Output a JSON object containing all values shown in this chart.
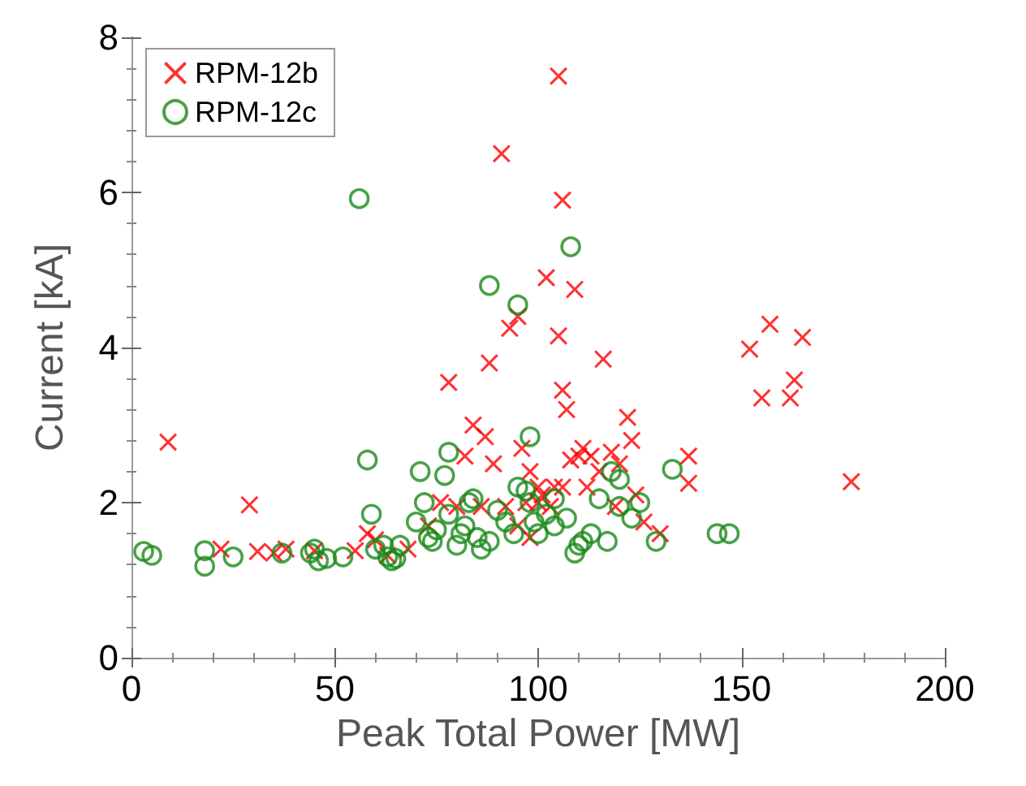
{
  "chart_data": {
    "type": "scatter",
    "xlabel": "Peak Total Power [MW]",
    "ylabel": "Current [kA]",
    "xlim": [
      0,
      200
    ],
    "xticks": [
      0,
      50,
      100,
      150,
      200
    ],
    "ylim": [
      0,
      8
    ],
    "yticks": [
      0,
      2,
      4,
      6,
      8
    ],
    "grid": false,
    "legend": "top left",
    "series": [
      {
        "name": "RPM-12b",
        "color": "#ff0000",
        "marker": "cross",
        "x": [
          9,
          22,
          29,
          31,
          35,
          38,
          45,
          55,
          58,
          60,
          63,
          68,
          73,
          76,
          78,
          80,
          82,
          84,
          86,
          87,
          88,
          89,
          91,
          92,
          93,
          95,
          96,
          98,
          100,
          102,
          104,
          105,
          105,
          106,
          106,
          106,
          107,
          108,
          109,
          110,
          111,
          112,
          113,
          115,
          116,
          118,
          119,
          120,
          122,
          123,
          124,
          126,
          130,
          137,
          137,
          152,
          155,
          157,
          162,
          163,
          165,
          177,
          95,
          98,
          97,
          101,
          103,
          100
        ],
        "values": [
          2.78,
          1.4,
          1.97,
          1.37,
          1.35,
          1.4,
          1.38,
          1.38,
          1.6,
          1.52,
          1.32,
          1.4,
          1.7,
          2.0,
          3.55,
          1.95,
          2.6,
          3.0,
          1.95,
          2.85,
          3.8,
          2.5,
          6.5,
          1.95,
          4.25,
          4.4,
          2.7,
          2.4,
          2.0,
          4.9,
          2.2,
          7.5,
          4.15,
          5.9,
          3.45,
          2.2,
          3.2,
          2.55,
          4.75,
          2.6,
          2.7,
          2.2,
          2.6,
          2.4,
          3.85,
          2.65,
          1.95,
          2.5,
          3.1,
          2.8,
          2.1,
          1.75,
          1.6,
          2.6,
          2.25,
          3.98,
          3.35,
          4.3,
          3.35,
          3.58,
          4.13,
          2.27,
          1.7,
          1.55,
          2.0,
          2.1,
          1.95,
          2.2
        ]
      },
      {
        "name": "RPM-12c",
        "color": "#1a8a1a",
        "marker": "circle",
        "x": [
          3,
          5,
          18,
          18,
          25,
          37,
          44,
          45,
          46,
          48,
          52,
          56,
          58,
          59,
          60,
          62,
          63,
          64,
          65,
          66,
          70,
          71,
          72,
          73,
          74,
          75,
          77,
          78,
          78,
          80,
          81,
          82,
          83,
          84,
          85,
          86,
          88,
          88,
          90,
          92,
          94,
          95,
          95,
          97,
          98,
          98,
          99,
          100,
          102,
          104,
          107,
          108,
          109,
          110,
          111,
          113,
          115,
          117,
          118,
          120,
          123,
          125,
          129,
          133,
          144,
          147,
          120,
          104
        ],
        "values": [
          1.37,
          1.32,
          1.38,
          1.18,
          1.3,
          1.35,
          1.35,
          1.4,
          1.25,
          1.28,
          1.3,
          5.92,
          2.55,
          1.85,
          1.4,
          1.45,
          1.3,
          1.25,
          1.28,
          1.45,
          1.75,
          2.4,
          2.0,
          1.55,
          1.5,
          1.65,
          2.35,
          2.65,
          1.85,
          1.45,
          1.6,
          1.7,
          2.0,
          2.05,
          1.55,
          1.4,
          4.8,
          1.5,
          1.9,
          1.75,
          1.6,
          4.55,
          2.2,
          2.15,
          2.85,
          2.0,
          1.75,
          1.6,
          1.85,
          2.05,
          1.8,
          5.3,
          1.35,
          1.45,
          1.5,
          1.6,
          2.05,
          1.5,
          2.4,
          2.3,
          1.8,
          2.0,
          1.5,
          2.43,
          1.6,
          1.6,
          1.95,
          1.7
        ]
      }
    ]
  }
}
